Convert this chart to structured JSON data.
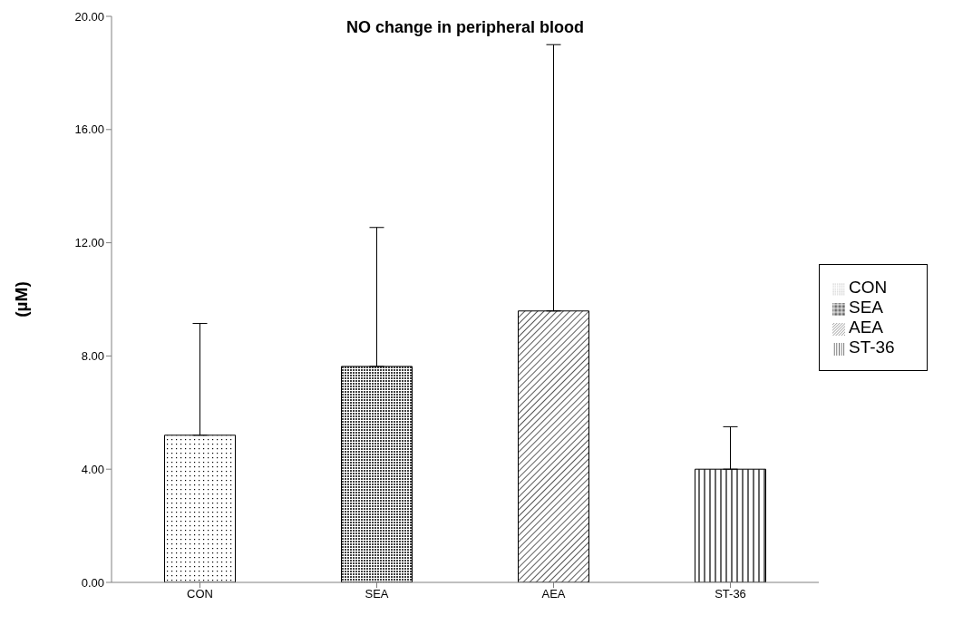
{
  "chart_data": {
    "type": "bar",
    "title": "NO change in peripheral blood",
    "ylabel": "(µM)",
    "categories": [
      "CON",
      "SEA",
      "AEA",
      "ST-36"
    ],
    "stacked": true,
    "series": [
      {
        "name": "CON",
        "color": "#000000",
        "values": [
          5.2,
          null,
          null,
          null
        ],
        "errors": [
          [
            5.2,
            9.15
          ],
          null,
          null,
          null
        ]
      },
      {
        "name": "SEA",
        "color": "#000000",
        "values": [
          null,
          7.63,
          null,
          null
        ],
        "errors": [
          null,
          [
            7.63,
            12.54
          ],
          null,
          null
        ]
      },
      {
        "name": "AEA",
        "color": "#000000",
        "values": [
          null,
          null,
          9.59,
          null
        ],
        "errors": [
          null,
          null,
          [
            9.59,
            19.0
          ],
          null
        ]
      },
      {
        "name": "ST-36",
        "color": "#000000",
        "values": [
          null,
          null,
          null,
          4.0
        ],
        "errors": [
          null,
          null,
          null,
          [
            4.0,
            5.5
          ]
        ]
      }
    ],
    "ylim": [
      0,
      20
    ],
    "yticks": [
      {
        "value": 0,
        "label": "0.00"
      },
      {
        "value": 4,
        "label": "4.00"
      },
      {
        "value": 8,
        "label": "8.00"
      },
      {
        "value": 12,
        "label": "12.00"
      },
      {
        "value": 16,
        "label": "16.00"
      },
      {
        "value": 20,
        "label": "20.00"
      }
    ],
    "grid": false,
    "legend": "right"
  }
}
